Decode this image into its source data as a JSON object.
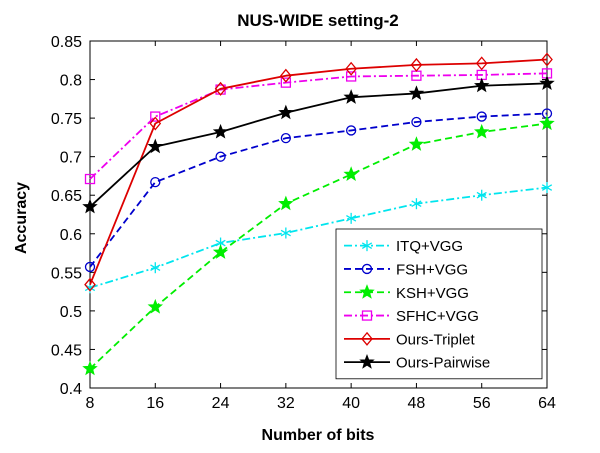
{
  "chart_data": {
    "type": "line",
    "title": "NUS-WIDE setting-2",
    "xlabel": "Number of bits",
    "ylabel": "Accuracy",
    "x": [
      8,
      16,
      24,
      32,
      40,
      48,
      56,
      64
    ],
    "x_tick_labels": [
      "8",
      "16",
      "24",
      "32",
      "40",
      "48",
      "56",
      "64"
    ],
    "xlim": [
      8,
      64
    ],
    "ylim": [
      0.4,
      0.85
    ],
    "y_ticks": [
      0.4,
      0.45,
      0.5,
      0.55,
      0.6,
      0.65,
      0.7,
      0.75,
      0.8,
      0.85
    ],
    "y_tick_labels": [
      "0.4",
      "0.45",
      "0.5",
      "0.55",
      "0.6",
      "0.65",
      "0.7",
      "0.75",
      "0.8",
      "0.85"
    ],
    "grid": false,
    "legend_position": "bottom-right",
    "series": [
      {
        "name": "ITQ+VGG",
        "color": "#00e5ee",
        "dash": "dashdot",
        "marker": "asterisk",
        "values": [
          0.53,
          0.556,
          0.588,
          0.601,
          0.62,
          0.639,
          0.65,
          0.66
        ]
      },
      {
        "name": "FSH+VGG",
        "color": "#0000cc",
        "dash": "dashed",
        "marker": "circle",
        "values": [
          0.557,
          0.667,
          0.7,
          0.724,
          0.734,
          0.745,
          0.752,
          0.756
        ]
      },
      {
        "name": "KSH+VGG",
        "color": "#00ee00",
        "dash": "dashed",
        "marker": "star",
        "values": [
          0.425,
          0.505,
          0.576,
          0.639,
          0.677,
          0.716,
          0.732,
          0.743
        ]
      },
      {
        "name": "SFHC+VGG",
        "color": "#ee00ee",
        "dash": "dashdot",
        "marker": "square",
        "values": [
          0.671,
          0.752,
          0.787,
          0.796,
          0.804,
          0.805,
          0.806,
          0.808
        ]
      },
      {
        "name": "Ours-Triplet",
        "color": "#dd0000",
        "dash": "solid",
        "marker": "diamond",
        "values": [
          0.534,
          0.743,
          0.788,
          0.805,
          0.814,
          0.819,
          0.821,
          0.826
        ]
      },
      {
        "name": "Ours-Pairwise",
        "color": "#000000",
        "dash": "solid",
        "marker": "star",
        "values": [
          0.635,
          0.713,
          0.732,
          0.757,
          0.777,
          0.782,
          0.792,
          0.795
        ]
      }
    ]
  }
}
